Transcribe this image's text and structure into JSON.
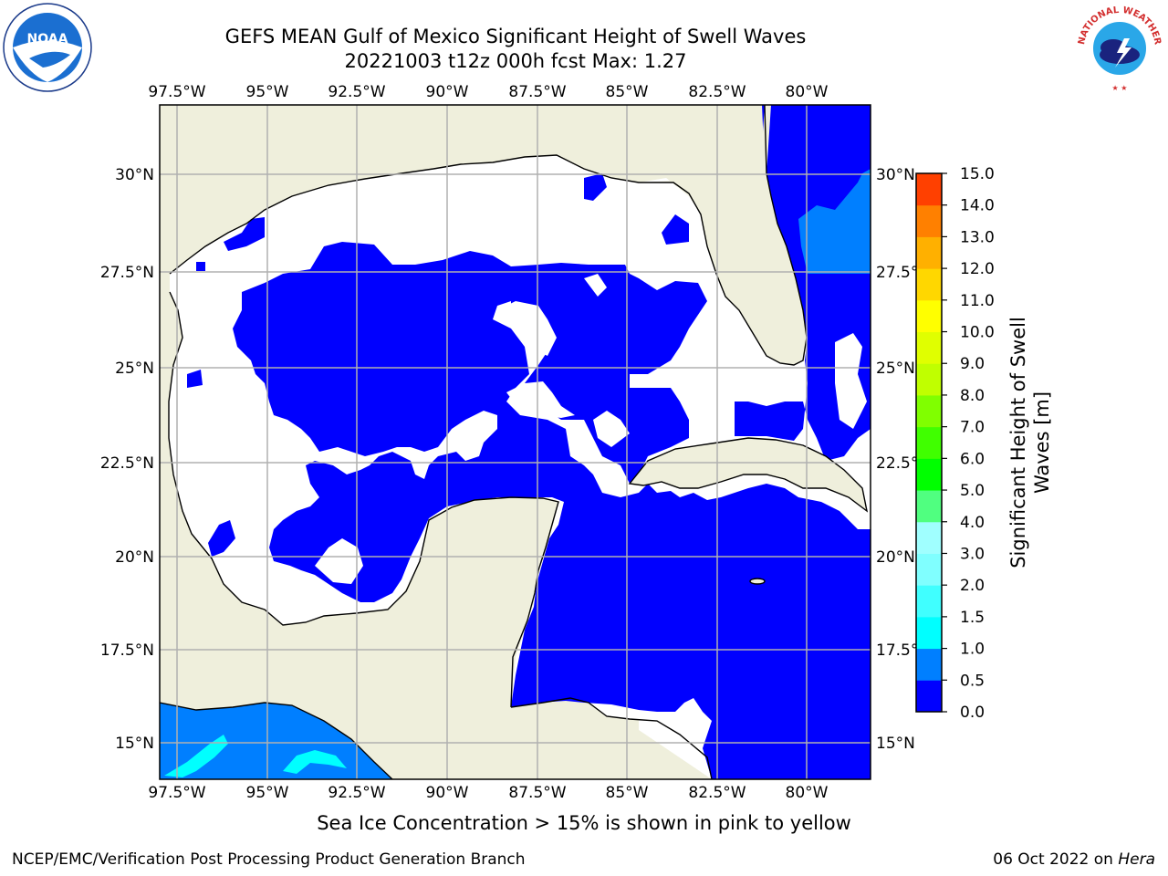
{
  "title": {
    "line1": "GEFS MEAN Gulf of Mexico Significant Height of Swell Waves",
    "line2": "20221003 t12z 000h fcst   Max: 1.27"
  },
  "logos": {
    "left": {
      "name": "noaa-logo",
      "text": "NOAA"
    },
    "right": {
      "name": "nws-logo",
      "text": "NATIONAL WEATHER SERVICE"
    }
  },
  "map": {
    "projection": "Mercator",
    "extent": {
      "lon_min": -98.5,
      "lon_max": -78.5,
      "lat_min": 14.0,
      "lat_max": 31.8
    },
    "grid": true,
    "colors": {
      "land": "#efefdc",
      "ocean_default": "#ffffff",
      "swell_low": "#0000ff",
      "swell_mid": "#007fff",
      "swell_high": "#00ffff",
      "coast": "#000000",
      "gridline": "#b0b0b0"
    },
    "lon_ticks": [
      "97.5°W",
      "95°W",
      "92.5°W",
      "90°W",
      "87.5°W",
      "85°W",
      "82.5°W",
      "80°W"
    ],
    "lat_ticks_left": [
      "30°N",
      "27.5°N",
      "25°N",
      "22.5°N",
      "20°N",
      "17.5°N",
      "15°N"
    ],
    "lat_ticks_right": [
      "30°N",
      "27.5°N",
      "25°N",
      "22.5°N",
      "20°N",
      "17.5°N",
      "15°N"
    ]
  },
  "colorbar": {
    "label": "Significant Height of Swell Waves [m]",
    "label_line1": "Significant Height of Swell",
    "label_line2": "Waves [m]",
    "ticks": [
      "0.0",
      "0.5",
      "1.0",
      "1.5",
      "2.0",
      "3.0",
      "4.0",
      "5.0",
      "6.0",
      "7.0",
      "8.0",
      "9.0",
      "10.0",
      "11.0",
      "12.0",
      "13.0",
      "14.0",
      "15.0"
    ],
    "colors": [
      "#0000ff",
      "#007fff",
      "#00ffff",
      "#40ffff",
      "#80ffff",
      "#a0ffff",
      "#50ff80",
      "#00ff00",
      "#40ff00",
      "#80ff00",
      "#c0ff00",
      "#e0ff00",
      "#ffff00",
      "#ffd700",
      "#ffb000",
      "#ff8000",
      "#ff4000",
      "#ff0000"
    ]
  },
  "subtitle": "Sea Ice Concentration > 15% is shown in pink to yellow",
  "footer": {
    "left": "NCEP/EMC/Verification Post Processing Product Generation Branch",
    "right_date": "06 Oct 2022 on ",
    "right_host": "Hera"
  }
}
